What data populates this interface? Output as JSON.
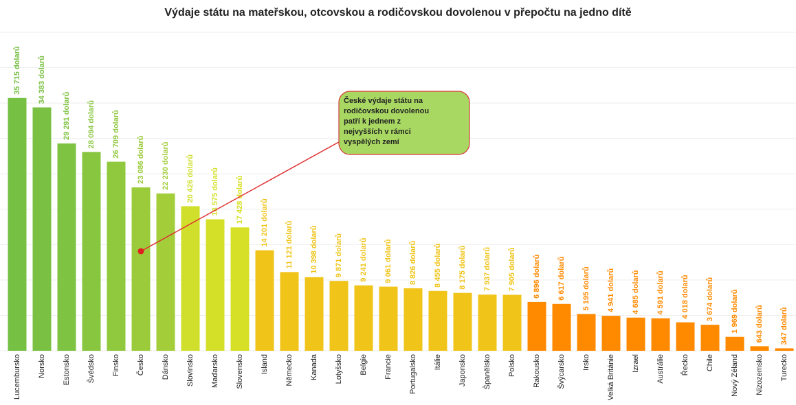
{
  "chart_data": {
    "type": "bar",
    "title": "Výdaje státu na mateřskou, otcovskou a rodičovskou dovolenou v přepočtu na jedno dítě",
    "categories": [
      "Lucembursko",
      "Norsko",
      "Estonsko",
      "Švédsko",
      "Finsko",
      "Česko",
      "Dánsko",
      "Slovinsko",
      "Maďarsko",
      "Slovensko",
      "Island",
      "Německo",
      "Kanada",
      "Lotyšsko",
      "Belgie",
      "Francie",
      "Portugalsko",
      "Itálie",
      "Japonsko",
      "Španělsko",
      "Polsko",
      "Rakousko",
      "Švýcarsko",
      "Irsko",
      "Velká Británie",
      "Izrael",
      "Austrálie",
      "Řecko",
      "Chile",
      "Nový Zéland",
      "Nizozemsko",
      "Turecko"
    ],
    "values": [
      35715,
      34383,
      29291,
      28094,
      26709,
      23086,
      22230,
      20426,
      18575,
      17428,
      14201,
      11121,
      10398,
      9871,
      9241,
      9061,
      8826,
      8455,
      8175,
      7937,
      7905,
      6896,
      6617,
      5195,
      4941,
      4685,
      4591,
      4018,
      3674,
      1969,
      643,
      347
    ],
    "value_labels": [
      "35 715 dolarů",
      "34 383 dolarů",
      "29 291 dolarů",
      "28 094 dolarů",
      "26 709 dolarů",
      "23 086 dolarů",
      "22 230 dolarů",
      "20 426 dolarů",
      "18 575 dolarů",
      "17 428 dolarů",
      "14 201 dolarů",
      "11 121 dolarů",
      "10 398 dolarů",
      "9 871 dolarů",
      "9 241 dolarů",
      "9 061 dolarů",
      "8 826 dolarů",
      "8 455 dolarů",
      "8 175 dolarů",
      "7 937 dolarů",
      "7 905 dolarů",
      "6 896 dolarů",
      "6 617 dolarů",
      "5 195 dolarů",
      "4 941 dolarů",
      "4 685 dolarů",
      "4 591 dolarů",
      "4 018 dolarů",
      "3 674 dolarů",
      "1 969 dolarů",
      "643 dolarů",
      "347 dolarů"
    ],
    "colors": [
      "#76c043",
      "#7ac143",
      "#7fc342",
      "#89c640",
      "#90c83e",
      "#9bcb3b",
      "#a3cd39",
      "#cfdf2c",
      "#d4e028",
      "#d6e026",
      "#f0c419",
      "#f0c419",
      "#f0c419",
      "#f0c419",
      "#f0c419",
      "#f0c419",
      "#f0c419",
      "#f0c419",
      "#f0c419",
      "#f0c419",
      "#f0c419",
      "#ff8a00",
      "#ff8a00",
      "#ff8a00",
      "#ff8a00",
      "#ff8a00",
      "#ff8a00",
      "#ff8a00",
      "#ff8a00",
      "#ff8a00",
      "#ff8a00",
      "#ff8a00"
    ],
    "ylim": [
      0,
      45000
    ],
    "yticks": [
      0,
      5000,
      10000,
      15000,
      20000,
      25000,
      30000,
      35000,
      40000,
      45000
    ],
    "grid": true,
    "annotation": {
      "lines": [
        "České výdaje státu na",
        "rodičovskou dovolenou",
        "patří k jednem z",
        "nejvyšších v rámci",
        "vyspělých zemí"
      ]
    }
  }
}
